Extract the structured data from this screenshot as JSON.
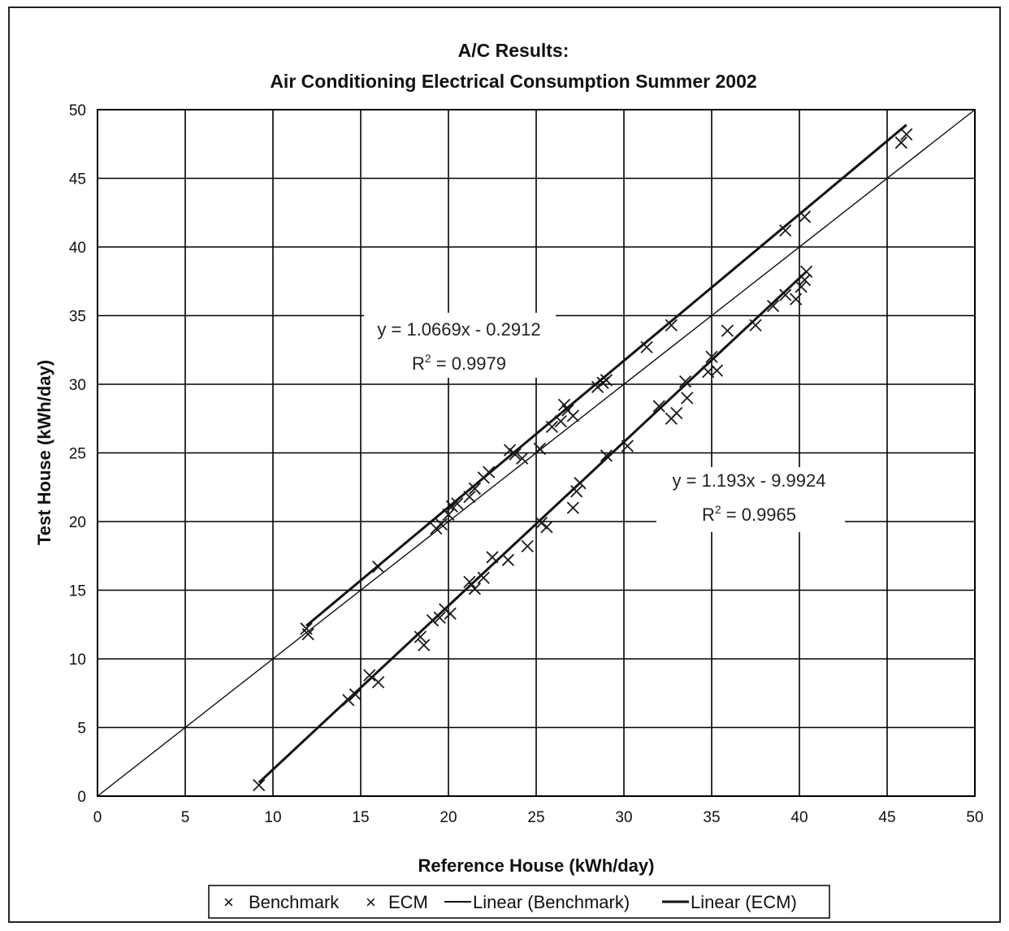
{
  "chart_data": {
    "type": "scatter",
    "title": "A/C Results:",
    "subtitle": "Air Conditioning Electrical Consumption Summer 2002",
    "xlabel": "Reference House (kWh/day)",
    "ylabel": "Test House  (kWh/day)",
    "xlim": [
      0,
      50
    ],
    "ylim": [
      0,
      50
    ],
    "x_ticks": [
      "0",
      "5",
      "10",
      "15",
      "20",
      "25",
      "30",
      "35",
      "40",
      "45",
      "50"
    ],
    "y_ticks": [
      "0",
      "5",
      "10",
      "15",
      "20",
      "25",
      "30",
      "35",
      "40",
      "45",
      "50"
    ],
    "grid": true,
    "legend_position": "bottom",
    "series": [
      {
        "name": "Benchmark",
        "marker": "x",
        "points": [
          [
            11.9,
            12.2
          ],
          [
            12.0,
            11.8
          ],
          [
            16.0,
            16.7
          ],
          [
            19.3,
            19.5
          ],
          [
            19.6,
            19.8
          ],
          [
            20.0,
            20.5
          ],
          [
            20.2,
            21.1
          ],
          [
            20.5,
            21.3
          ],
          [
            21.2,
            21.8
          ],
          [
            21.5,
            22.4
          ],
          [
            22.0,
            23.2
          ],
          [
            22.3,
            23.6
          ],
          [
            23.5,
            25.2
          ],
          [
            23.8,
            24.9
          ],
          [
            24.2,
            24.6
          ],
          [
            25.2,
            25.3
          ],
          [
            25.9,
            26.9
          ],
          [
            26.4,
            27.3
          ],
          [
            26.6,
            28.5
          ],
          [
            26.8,
            28.1
          ],
          [
            27.1,
            27.7
          ],
          [
            28.5,
            29.8
          ],
          [
            28.8,
            30.1
          ],
          [
            29.0,
            30.3
          ],
          [
            31.3,
            32.7
          ],
          [
            32.7,
            34.3
          ],
          [
            39.2,
            41.2
          ],
          [
            40.3,
            42.2
          ],
          [
            45.8,
            47.6
          ],
          [
            46.1,
            48.2
          ]
        ]
      },
      {
        "name": "ECM",
        "marker": "x",
        "points": [
          [
            9.2,
            0.8
          ],
          [
            14.3,
            7.0
          ],
          [
            14.7,
            7.4
          ],
          [
            15.5,
            8.8
          ],
          [
            16.0,
            8.3
          ],
          [
            18.4,
            11.6
          ],
          [
            18.6,
            11.0
          ],
          [
            19.1,
            12.8
          ],
          [
            19.5,
            13.0
          ],
          [
            19.8,
            13.6
          ],
          [
            20.1,
            13.3
          ],
          [
            21.2,
            15.6
          ],
          [
            21.5,
            15.1
          ],
          [
            22.0,
            15.9
          ],
          [
            22.5,
            17.4
          ],
          [
            23.4,
            17.2
          ],
          [
            24.5,
            18.2
          ],
          [
            25.3,
            19.9
          ],
          [
            25.6,
            19.6
          ],
          [
            27.1,
            21.0
          ],
          [
            27.3,
            22.2
          ],
          [
            27.5,
            22.8
          ],
          [
            29.0,
            24.8
          ],
          [
            30.2,
            25.5
          ],
          [
            32.0,
            28.4
          ],
          [
            32.7,
            27.5
          ],
          [
            33.0,
            27.9
          ],
          [
            33.5,
            30.2
          ],
          [
            33.6,
            29.0
          ],
          [
            34.8,
            30.9
          ],
          [
            35.0,
            32.0
          ],
          [
            35.3,
            31.0
          ],
          [
            35.9,
            33.9
          ],
          [
            37.5,
            34.3
          ],
          [
            38.5,
            35.7
          ],
          [
            39.2,
            36.5
          ],
          [
            39.8,
            36.2
          ],
          [
            40.1,
            37.1
          ],
          [
            40.3,
            37.6
          ],
          [
            40.4,
            38.2
          ]
        ]
      }
    ],
    "trendlines": [
      {
        "name": "Linear (Benchmark)",
        "slope": 1.0669,
        "intercept": -0.2912,
        "x_range": [
          11.9,
          46.1
        ],
        "equation": "y = 1.0669x - 0.2912",
        "r2_label": "R",
        "r2_sup": "2",
        "r2_value": " = 0.9979"
      },
      {
        "name": "Linear (ECM)",
        "slope": 1.193,
        "intercept": -9.9924,
        "x_range": [
          9.2,
          40.4
        ],
        "equation": "y = 1.193x - 9.9924",
        "r2_label": "R",
        "r2_sup": "2",
        "r2_value": " = 0.9965"
      }
    ],
    "reference_line": {
      "slope": 1,
      "intercept": 0
    },
    "legend": [
      {
        "label": "Benchmark",
        "symbol": "×"
      },
      {
        "label": "ECM",
        "symbol": "×"
      },
      {
        "label": "Linear (Benchmark)",
        "symbol": "line"
      },
      {
        "label": "Linear (ECM)",
        "symbol": "line"
      }
    ],
    "colors": {
      "marks": "#1a1a1a",
      "grid": "#000000",
      "background": "#ffffff"
    }
  }
}
